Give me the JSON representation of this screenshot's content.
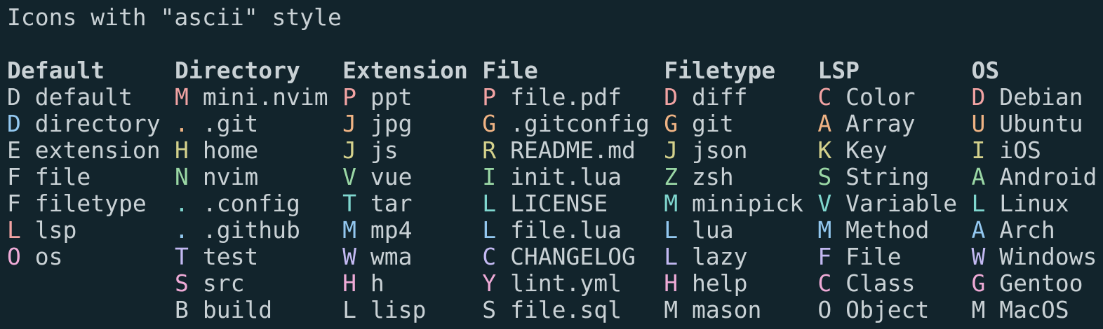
{
  "title": "Icons with \"ascii\" style",
  "colors": {
    "background": "#12242c",
    "foreground": "#c9d1d5",
    "red": "#f2a3a3",
    "orange": "#efb384",
    "yellow": "#d4d18c",
    "green": "#9ad7a5",
    "cyan": "#80d7cf",
    "blue": "#93c8f0",
    "purple": "#c3b9f2",
    "magenta": "#eeaad6"
  },
  "columns": [
    {
      "header": "Default",
      "items": [
        {
          "icon": "D",
          "label": "default",
          "color": "foreground"
        },
        {
          "icon": "D",
          "label": "directory",
          "color": "blue"
        },
        {
          "icon": "E",
          "label": "extension",
          "color": "foreground"
        },
        {
          "icon": "F",
          "label": "file",
          "color": "foreground"
        },
        {
          "icon": "F",
          "label": "filetype",
          "color": "foreground"
        },
        {
          "icon": "L",
          "label": "lsp",
          "color": "red"
        },
        {
          "icon": "O",
          "label": "os",
          "color": "magenta"
        }
      ]
    },
    {
      "header": "Directory",
      "items": [
        {
          "icon": "M",
          "label": "mini.nvim",
          "color": "red"
        },
        {
          "icon": ".",
          "label": ".git",
          "color": "orange"
        },
        {
          "icon": "H",
          "label": "home",
          "color": "yellow"
        },
        {
          "icon": "N",
          "label": "nvim",
          "color": "green"
        },
        {
          "icon": ".",
          "label": ".config",
          "color": "cyan"
        },
        {
          "icon": ".",
          "label": ".github",
          "color": "blue"
        },
        {
          "icon": "T",
          "label": "test",
          "color": "purple"
        },
        {
          "icon": "S",
          "label": "src",
          "color": "magenta"
        },
        {
          "icon": "B",
          "label": "build",
          "color": "foreground"
        }
      ]
    },
    {
      "header": "Extension",
      "items": [
        {
          "icon": "P",
          "label": "ppt",
          "color": "red"
        },
        {
          "icon": "J",
          "label": "jpg",
          "color": "orange"
        },
        {
          "icon": "J",
          "label": "js",
          "color": "yellow"
        },
        {
          "icon": "V",
          "label": "vue",
          "color": "green"
        },
        {
          "icon": "T",
          "label": "tar",
          "color": "cyan"
        },
        {
          "icon": "M",
          "label": "mp4",
          "color": "blue"
        },
        {
          "icon": "W",
          "label": "wma",
          "color": "purple"
        },
        {
          "icon": "H",
          "label": "h",
          "color": "magenta"
        },
        {
          "icon": "L",
          "label": "lisp",
          "color": "foreground"
        }
      ]
    },
    {
      "header": "File",
      "items": [
        {
          "icon": "P",
          "label": "file.pdf",
          "color": "red"
        },
        {
          "icon": "G",
          "label": ".gitconfig",
          "color": "orange"
        },
        {
          "icon": "R",
          "label": "README.md",
          "color": "yellow"
        },
        {
          "icon": "I",
          "label": "init.lua",
          "color": "green"
        },
        {
          "icon": "L",
          "label": "LICENSE",
          "color": "cyan"
        },
        {
          "icon": "L",
          "label": "file.lua",
          "color": "blue"
        },
        {
          "icon": "C",
          "label": "CHANGELOG",
          "color": "purple"
        },
        {
          "icon": "Y",
          "label": "lint.yml",
          "color": "magenta"
        },
        {
          "icon": "S",
          "label": "file.sql",
          "color": "foreground"
        }
      ]
    },
    {
      "header": "Filetype",
      "items": [
        {
          "icon": "D",
          "label": "diff",
          "color": "red"
        },
        {
          "icon": "G",
          "label": "git",
          "color": "orange"
        },
        {
          "icon": "J",
          "label": "json",
          "color": "yellow"
        },
        {
          "icon": "Z",
          "label": "zsh",
          "color": "green"
        },
        {
          "icon": "M",
          "label": "minipick",
          "color": "cyan"
        },
        {
          "icon": "L",
          "label": "lua",
          "color": "blue"
        },
        {
          "icon": "L",
          "label": "lazy",
          "color": "purple"
        },
        {
          "icon": "H",
          "label": "help",
          "color": "magenta"
        },
        {
          "icon": "M",
          "label": "mason",
          "color": "foreground"
        }
      ]
    },
    {
      "header": "LSP",
      "items": [
        {
          "icon": "C",
          "label": "Color",
          "color": "red"
        },
        {
          "icon": "A",
          "label": "Array",
          "color": "orange"
        },
        {
          "icon": "K",
          "label": "Key",
          "color": "yellow"
        },
        {
          "icon": "S",
          "label": "String",
          "color": "green"
        },
        {
          "icon": "V",
          "label": "Variable",
          "color": "cyan"
        },
        {
          "icon": "M",
          "label": "Method",
          "color": "blue"
        },
        {
          "icon": "F",
          "label": "File",
          "color": "purple"
        },
        {
          "icon": "C",
          "label": "Class",
          "color": "magenta"
        },
        {
          "icon": "O",
          "label": "Object",
          "color": "foreground"
        }
      ]
    },
    {
      "header": "OS",
      "items": [
        {
          "icon": "D",
          "label": "Debian",
          "color": "red"
        },
        {
          "icon": "U",
          "label": "Ubuntu",
          "color": "orange"
        },
        {
          "icon": "I",
          "label": "iOS",
          "color": "yellow"
        },
        {
          "icon": "A",
          "label": "Android",
          "color": "green"
        },
        {
          "icon": "L",
          "label": "Linux",
          "color": "cyan"
        },
        {
          "icon": "A",
          "label": "Arch",
          "color": "blue"
        },
        {
          "icon": "W",
          "label": "Windows",
          "color": "purple"
        },
        {
          "icon": "G",
          "label": "Gentoo",
          "color": "magenta"
        },
        {
          "icon": "M",
          "label": "MacOS",
          "color": "foreground"
        }
      ]
    }
  ]
}
